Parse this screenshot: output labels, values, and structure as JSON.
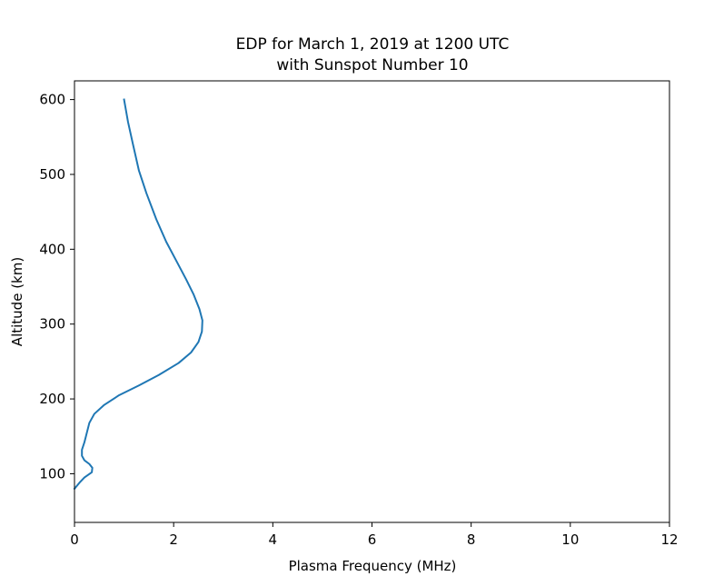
{
  "chart_data": {
    "type": "line",
    "title": "EDP for March 1, 2019 at 1200 UTC",
    "subtitle": "with Sunspot Number 10",
    "xlabel": "Plasma Frequency (MHz)",
    "ylabel": "Altitude (km)",
    "xlim": [
      0,
      12
    ],
    "ylim": [
      35,
      625
    ],
    "x_ticks": [
      0,
      2,
      4,
      6,
      8,
      10,
      12
    ],
    "y_ticks": [
      100,
      200,
      300,
      400,
      500,
      600
    ],
    "grid": false,
    "series": [
      {
        "color": "#1f77b4",
        "points": [
          [
            0.0,
            80
          ],
          [
            0.1,
            88
          ],
          [
            0.2,
            95
          ],
          [
            0.35,
            102
          ],
          [
            0.36,
            108
          ],
          [
            0.3,
            113
          ],
          [
            0.2,
            118
          ],
          [
            0.15,
            124
          ],
          [
            0.15,
            132
          ],
          [
            0.2,
            142
          ],
          [
            0.25,
            155
          ],
          [
            0.3,
            168
          ],
          [
            0.4,
            180
          ],
          [
            0.6,
            192
          ],
          [
            0.9,
            205
          ],
          [
            1.3,
            218
          ],
          [
            1.7,
            232
          ],
          [
            2.1,
            248
          ],
          [
            2.35,
            262
          ],
          [
            2.5,
            276
          ],
          [
            2.57,
            290
          ],
          [
            2.58,
            305
          ],
          [
            2.52,
            320
          ],
          [
            2.4,
            340
          ],
          [
            2.25,
            360
          ],
          [
            2.05,
            385
          ],
          [
            1.85,
            410
          ],
          [
            1.65,
            440
          ],
          [
            1.45,
            475
          ],
          [
            1.3,
            505
          ],
          [
            1.18,
            540
          ],
          [
            1.08,
            570
          ],
          [
            1.0,
            600
          ]
        ]
      }
    ]
  }
}
